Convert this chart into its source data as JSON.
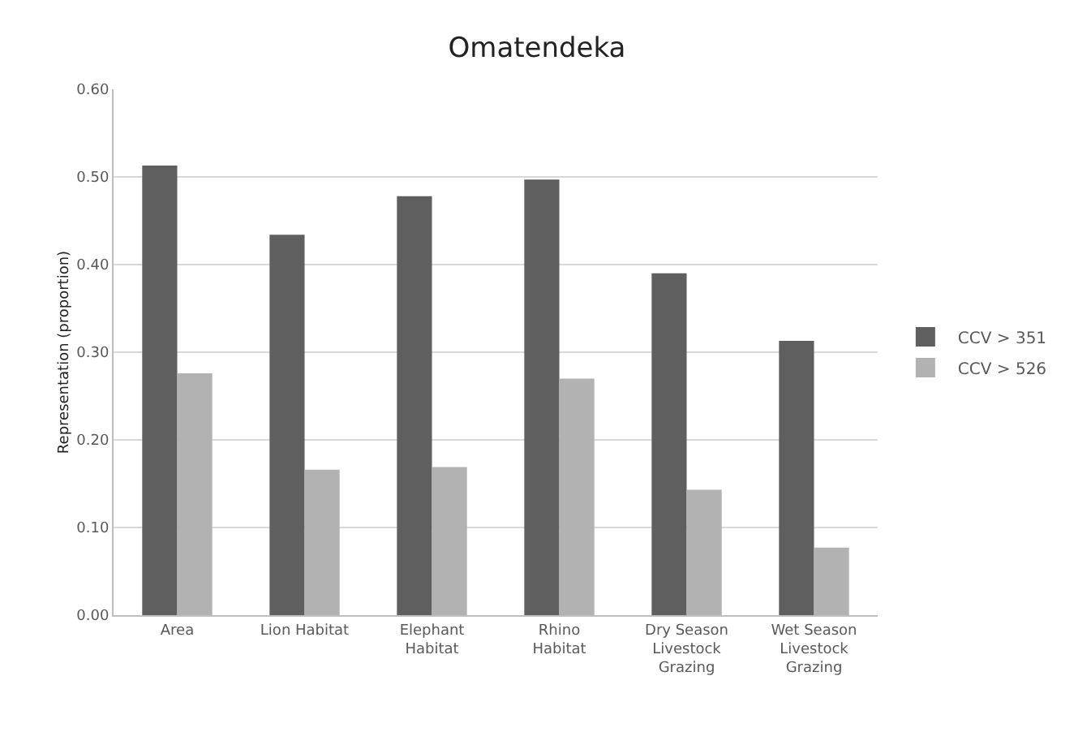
{
  "chart_data": {
    "type": "bar",
    "title": "Omatendeka",
    "ylabel": "Representation (proportion)",
    "categories": [
      "Area",
      "Lion Habitat",
      "Elephant\nHabitat",
      "Rhino\nHabitat",
      "Dry Season\nLivestock\nGrazing",
      "Wet Season\nLivestock\nGrazing"
    ],
    "series": [
      {
        "name": "CCV > 351",
        "color": "#5f5f5f",
        "values": [
          0.513,
          0.434,
          0.478,
          0.497,
          0.39,
          0.313
        ]
      },
      {
        "name": "CCV > 526",
        "color": "#b2b2b2",
        "values": [
          0.276,
          0.166,
          0.169,
          0.27,
          0.143,
          0.077
        ]
      }
    ],
    "ylim": [
      0,
      0.6
    ],
    "yticks": [
      {
        "value": 0,
        "label": "0.00"
      },
      {
        "value": 0.1,
        "label": "0.10"
      },
      {
        "value": 0.2,
        "label": "0.20"
      },
      {
        "value": 0.3,
        "label": "0.30"
      },
      {
        "value": 0.4,
        "label": "0.40"
      },
      {
        "value": 0.5,
        "label": "0.50"
      },
      {
        "value": 0.6,
        "label": "0.60"
      }
    ],
    "grid": "y",
    "legend": "right"
  }
}
